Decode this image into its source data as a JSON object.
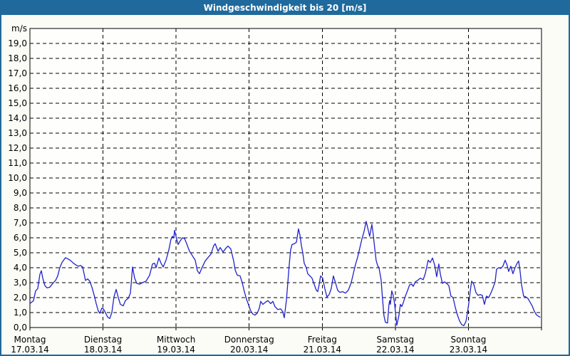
{
  "window": {
    "title": "Windgeschwindigkeit bis 20 [m/s]"
  },
  "colors": {
    "titlebar_bg": "#1f699c",
    "titlebar_text": "#ffffff",
    "frame_border": "#1f699c",
    "canvas_bg": "#fbfcf6",
    "plot_bg": "#fefefc",
    "plot_border": "#000000",
    "gridline": "#000000",
    "series_line": "#2222cc",
    "axis_text": "#000000"
  },
  "chart_data": {
    "type": "line",
    "title": "Windgeschwindigkeit bis 20 [m/s]",
    "ylabel": "m/s",
    "ylim": [
      0,
      20
    ],
    "y_tick_step": 1,
    "y_ticks_labeled": [
      0,
      1,
      2,
      3,
      4,
      5,
      6,
      7,
      8,
      9,
      10,
      11,
      12,
      13,
      14,
      15,
      16,
      17,
      18,
      19
    ],
    "decimal_separator": ",",
    "grid": "dashed",
    "legend": "none",
    "x_range_days": [
      0,
      7
    ],
    "x_days": [
      {
        "name": "Montag",
        "date": "17.03.14"
      },
      {
        "name": "Dienstag",
        "date": "18.03.14"
      },
      {
        "name": "Mittwoch",
        "date": "19.03.14"
      },
      {
        "name": "Donnerstag",
        "date": "20.03.14"
      },
      {
        "name": "Freitag",
        "date": "21.03.14"
      },
      {
        "name": "Samstag",
        "date": "22.03.14"
      },
      {
        "name": "Sonntag",
        "date": "23.03.14"
      }
    ],
    "series": [
      {
        "name": "Windgeschwindigkeit",
        "unit": "m/s",
        "points": [
          [
            0.0,
            1.6
          ],
          [
            0.049,
            1.8
          ],
          [
            0.078,
            2.45
          ],
          [
            0.107,
            2.6
          ],
          [
            0.136,
            3.55
          ],
          [
            0.156,
            3.8
          ],
          [
            0.176,
            3.3
          ],
          [
            0.205,
            2.8
          ],
          [
            0.234,
            2.65
          ],
          [
            0.273,
            2.7
          ],
          [
            0.312,
            2.95
          ],
          [
            0.351,
            3.15
          ],
          [
            0.38,
            3.45
          ],
          [
            0.409,
            4.0
          ],
          [
            0.439,
            4.35
          ],
          [
            0.468,
            4.55
          ],
          [
            0.487,
            4.67
          ],
          [
            0.517,
            4.6
          ],
          [
            0.556,
            4.48
          ],
          [
            0.595,
            4.3
          ],
          [
            0.634,
            4.17
          ],
          [
            0.663,
            4.1
          ],
          [
            0.692,
            4.15
          ],
          [
            0.721,
            4.05
          ],
          [
            0.741,
            3.6
          ],
          [
            0.76,
            3.15
          ],
          [
            0.79,
            3.25
          ],
          [
            0.819,
            3.1
          ],
          [
            0.848,
            2.7
          ],
          [
            0.877,
            2.2
          ],
          [
            0.907,
            1.6
          ],
          [
            0.936,
            1.1
          ],
          [
            0.955,
            0.95
          ],
          [
            0.985,
            1.3
          ],
          [
            1.004,
            1.25
          ],
          [
            1.033,
            1.0
          ],
          [
            1.063,
            0.7
          ],
          [
            1.092,
            0.6
          ],
          [
            1.121,
            1.0
          ],
          [
            1.15,
            2.05
          ],
          [
            1.18,
            2.55
          ],
          [
            1.209,
            2.0
          ],
          [
            1.238,
            1.55
          ],
          [
            1.277,
            1.45
          ],
          [
            1.306,
            1.8
          ],
          [
            1.345,
            1.95
          ],
          [
            1.375,
            2.3
          ],
          [
            1.404,
            4.05
          ],
          [
            1.433,
            3.3
          ],
          [
            1.462,
            2.95
          ],
          [
            1.501,
            2.9
          ],
          [
            1.54,
            3.0
          ],
          [
            1.589,
            3.1
          ],
          [
            1.638,
            3.5
          ],
          [
            1.677,
            4.25
          ],
          [
            1.706,
            4.3
          ],
          [
            1.726,
            4.0
          ],
          [
            1.765,
            4.65
          ],
          [
            1.794,
            4.3
          ],
          [
            1.823,
            4.05
          ],
          [
            1.862,
            4.5
          ],
          [
            1.901,
            5.2
          ],
          [
            1.93,
            5.9
          ],
          [
            1.95,
            6.1
          ],
          [
            1.969,
            6.0
          ],
          [
            1.979,
            6.5
          ],
          [
            2.008,
            5.9
          ],
          [
            2.028,
            5.55
          ],
          [
            2.057,
            5.8
          ],
          [
            2.086,
            6.0
          ],
          [
            2.116,
            5.95
          ],
          [
            2.145,
            5.6
          ],
          [
            2.184,
            5.1
          ],
          [
            2.223,
            4.8
          ],
          [
            2.262,
            4.5
          ],
          [
            2.291,
            3.8
          ],
          [
            2.32,
            3.6
          ],
          [
            2.359,
            4.05
          ],
          [
            2.398,
            4.45
          ],
          [
            2.437,
            4.68
          ],
          [
            2.476,
            4.9
          ],
          [
            2.515,
            5.48
          ],
          [
            2.535,
            5.6
          ],
          [
            2.574,
            5.1
          ],
          [
            2.603,
            5.35
          ],
          [
            2.642,
            5.05
          ],
          [
            2.681,
            5.3
          ],
          [
            2.71,
            5.45
          ],
          [
            2.749,
            5.25
          ],
          [
            2.788,
            4.45
          ],
          [
            2.808,
            3.85
          ],
          [
            2.837,
            3.5
          ],
          [
            2.876,
            3.45
          ],
          [
            2.905,
            3.0
          ],
          [
            2.934,
            2.4
          ],
          [
            2.963,
            1.9
          ],
          [
            2.993,
            1.5
          ],
          [
            3.022,
            1.1
          ],
          [
            3.051,
            0.9
          ],
          [
            3.08,
            0.83
          ],
          [
            3.11,
            0.95
          ],
          [
            3.139,
            1.3
          ],
          [
            3.158,
            1.75
          ],
          [
            3.187,
            1.55
          ],
          [
            3.226,
            1.7
          ],
          [
            3.256,
            1.8
          ],
          [
            3.295,
            1.6
          ],
          [
            3.324,
            1.75
          ],
          [
            3.353,
            1.4
          ],
          [
            3.392,
            1.2
          ],
          [
            3.431,
            1.25
          ],
          [
            3.461,
            1.05
          ],
          [
            3.48,
            0.65
          ],
          [
            3.509,
            1.8
          ],
          [
            3.529,
            3.0
          ],
          [
            3.548,
            4.2
          ],
          [
            3.568,
            5.2
          ],
          [
            3.587,
            5.55
          ],
          [
            3.617,
            5.6
          ],
          [
            3.646,
            5.7
          ],
          [
            3.675,
            6.6
          ],
          [
            3.694,
            6.2
          ],
          [
            3.714,
            5.5
          ],
          [
            3.733,
            5.0
          ],
          [
            3.753,
            4.3
          ],
          [
            3.782,
            4.0
          ],
          [
            3.801,
            3.6
          ],
          [
            3.831,
            3.45
          ],
          [
            3.86,
            3.3
          ],
          [
            3.889,
            2.9
          ],
          [
            3.918,
            2.5
          ],
          [
            3.938,
            2.4
          ],
          [
            3.957,
            2.85
          ],
          [
            3.977,
            3.45
          ],
          [
            4.006,
            3.3
          ],
          [
            4.035,
            2.6
          ],
          [
            4.064,
            2.05
          ],
          [
            4.094,
            2.2
          ],
          [
            4.123,
            2.6
          ],
          [
            4.152,
            3.45
          ],
          [
            4.181,
            3.0
          ],
          [
            4.21,
            2.5
          ],
          [
            4.24,
            2.35
          ],
          [
            4.279,
            2.4
          ],
          [
            4.318,
            2.3
          ],
          [
            4.357,
            2.5
          ],
          [
            4.396,
            3.0
          ],
          [
            4.425,
            3.6
          ],
          [
            4.454,
            4.2
          ],
          [
            4.484,
            4.7
          ],
          [
            4.513,
            5.3
          ],
          [
            4.542,
            5.9
          ],
          [
            4.571,
            6.4
          ],
          [
            4.601,
            7.1
          ],
          [
            4.63,
            6.5
          ],
          [
            4.649,
            6.1
          ],
          [
            4.679,
            6.9
          ],
          [
            4.698,
            6.2
          ],
          [
            4.718,
            5.3
          ],
          [
            4.737,
            4.5
          ],
          [
            4.757,
            4.15
          ],
          [
            4.776,
            4.0
          ],
          [
            4.805,
            3.2
          ],
          [
            4.825,
            1.9
          ],
          [
            4.844,
            0.8
          ],
          [
            4.864,
            0.35
          ],
          [
            4.893,
            0.3
          ],
          [
            4.912,
            1.5
          ],
          [
            4.922,
            1.8
          ],
          [
            4.932,
            1.55
          ],
          [
            4.951,
            2.45
          ],
          [
            4.971,
            2.15
          ],
          [
            4.99,
            1.6
          ],
          [
            5.01,
            0.6
          ],
          [
            5.02,
            0.15
          ],
          [
            5.049,
            0.8
          ],
          [
            5.069,
            1.55
          ],
          [
            5.088,
            1.4
          ],
          [
            5.108,
            1.65
          ],
          [
            5.137,
            2.1
          ],
          [
            5.166,
            2.45
          ],
          [
            5.195,
            2.85
          ],
          [
            5.225,
            2.9
          ],
          [
            5.244,
            2.75
          ],
          [
            5.273,
            3.05
          ],
          [
            5.303,
            3.15
          ],
          [
            5.342,
            3.3
          ],
          [
            5.381,
            3.2
          ],
          [
            5.41,
            3.6
          ],
          [
            5.449,
            4.5
          ],
          [
            5.478,
            4.35
          ],
          [
            5.508,
            4.65
          ],
          [
            5.537,
            4.2
          ],
          [
            5.566,
            3.4
          ],
          [
            5.595,
            4.25
          ],
          [
            5.615,
            3.6
          ],
          [
            5.644,
            2.95
          ],
          [
            5.673,
            3.05
          ],
          [
            5.703,
            2.95
          ],
          [
            5.732,
            2.8
          ],
          [
            5.761,
            2.1
          ],
          [
            5.79,
            2.0
          ],
          [
            5.82,
            1.35
          ],
          [
            5.849,
            0.85
          ],
          [
            5.878,
            0.45
          ],
          [
            5.907,
            0.2
          ],
          [
            5.937,
            0.12
          ],
          [
            5.966,
            0.4
          ],
          [
            5.985,
            0.95
          ],
          [
            6.005,
            1.6
          ],
          [
            6.024,
            2.4
          ],
          [
            6.044,
            3.1
          ],
          [
            6.073,
            2.9
          ],
          [
            6.102,
            2.35
          ],
          [
            6.131,
            2.15
          ],
          [
            6.161,
            2.2
          ],
          [
            6.19,
            2.15
          ],
          [
            6.219,
            1.55
          ],
          [
            6.248,
            2.1
          ],
          [
            6.277,
            2.0
          ],
          [
            6.307,
            2.3
          ],
          [
            6.336,
            2.65
          ],
          [
            6.365,
            3.05
          ],
          [
            6.385,
            3.9
          ],
          [
            6.414,
            4.0
          ],
          [
            6.443,
            3.95
          ],
          [
            6.472,
            4.1
          ],
          [
            6.502,
            4.5
          ],
          [
            6.531,
            4.15
          ],
          [
            6.55,
            3.75
          ],
          [
            6.58,
            4.1
          ],
          [
            6.609,
            3.6
          ],
          [
            6.638,
            4.0
          ],
          [
            6.667,
            4.3
          ],
          [
            6.687,
            4.45
          ],
          [
            6.706,
            3.8
          ],
          [
            6.726,
            2.9
          ],
          [
            6.755,
            2.1
          ],
          [
            6.784,
            2.05
          ],
          [
            6.814,
            1.95
          ],
          [
            6.843,
            1.7
          ],
          [
            6.872,
            1.45
          ],
          [
            6.901,
            1.1
          ],
          [
            6.931,
            0.85
          ],
          [
            6.96,
            0.75
          ],
          [
            6.979,
            0.7
          ]
        ]
      }
    ]
  }
}
